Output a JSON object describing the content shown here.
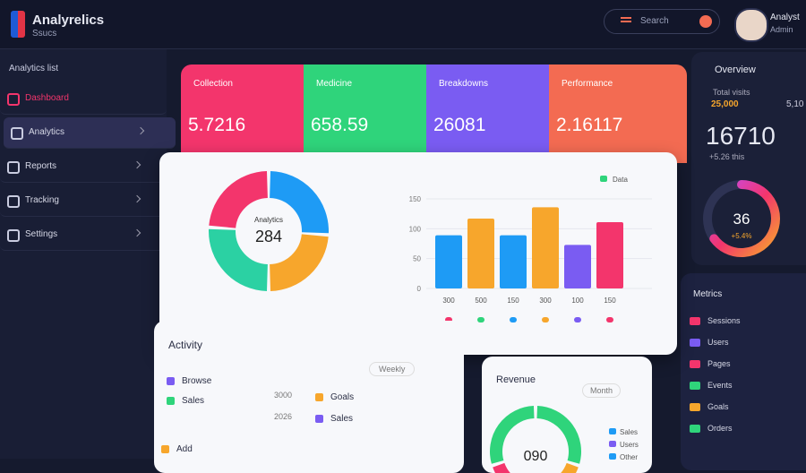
{
  "header": {
    "brand": "Analyrelics",
    "subtitle": "Ssucs",
    "search": "Search",
    "user_name": "Analyst",
    "user_role": "Admin"
  },
  "sidebar": {
    "section": "Analytics list",
    "items": [
      "Dashboard",
      "Analytics",
      "Reports",
      "Tracking",
      "Settings"
    ],
    "active": 1
  },
  "kpis": [
    {
      "label": "Collection",
      "value": "5.7216",
      "color": "#f3356c"
    },
    {
      "label": "Medicine",
      "value": "658.59",
      "color": "#2fd47b"
    },
    {
      "label": "Breakdowns",
      "value": "26081",
      "color": "#7a5cf2"
    },
    {
      "label": "Performance",
      "value": "2.16117",
      "color": "#f36b52"
    }
  ],
  "main_chart": {
    "donut": {
      "label": "Analytics",
      "total": "284",
      "values": [
        26,
        24,
        26,
        24
      ],
      "colors": [
        "#1e9bf5",
        "#f7a62c",
        "#2bd1a3",
        "#f3356c"
      ]
    },
    "bar": {
      "legend": "Data",
      "legend_color": "#2fd47b",
      "categories": [
        "300",
        "500",
        "150",
        "300",
        "100",
        "150"
      ],
      "values": [
        89,
        117,
        89,
        136,
        73,
        111
      ],
      "colors": [
        "#1e9bf5",
        "#f7a62c",
        "#1e9bf5",
        "#f7a62c",
        "#7a5cf2",
        "#f3356c"
      ],
      "legend_dots": [
        "#f3356c",
        "#2fd47b",
        "#1e9bf5",
        "#f7a62c",
        "#7a5cf2",
        "#f3356c"
      ],
      "ylim": [
        0,
        150
      ],
      "yticks": [
        0,
        50,
        100,
        150
      ]
    }
  },
  "overview": {
    "title": "Overview",
    "label": "Total visits",
    "highlights": [
      "25,000",
      "5,10"
    ],
    "value": "16710",
    "note": "+5.26 this",
    "gauge": {
      "value": 65,
      "max": 100,
      "label": "36",
      "delta": "+5.4%"
    }
  },
  "metrics": {
    "title": "Metrics",
    "rows": [
      {
        "label": "Sessions",
        "color": "#f3356c"
      },
      {
        "label": "Users",
        "color": "#7a5cf2"
      },
      {
        "label": "Pages",
        "color": "#f3356c"
      },
      {
        "label": "Events",
        "color": "#2fd47b"
      },
      {
        "label": "Goals",
        "color": "#f7a62c"
      },
      {
        "label": "Orders",
        "color": "#2fd47b"
      }
    ]
  },
  "activity": {
    "title": "Activity",
    "filter": "Weekly",
    "left": [
      {
        "label": "Browse",
        "color": "#7a5cf2"
      },
      {
        "label": "Sales",
        "color": "#2fd47b"
      }
    ],
    "middle": [
      {
        "label": "Goals",
        "value": "3000",
        "color": "#f7a62c"
      },
      {
        "label": "Sales",
        "value": "2026",
        "color": "#7a5cf2"
      }
    ],
    "footer": "Add"
  },
  "revenue": {
    "title": "Revenue",
    "filter": "Month",
    "total": "090",
    "values": [
      30,
      10,
      10,
      20,
      30
    ],
    "colors": [
      "#2fd47b",
      "#f7a62c",
      "#f3356c",
      "#f3356c",
      "#2fd47b"
    ],
    "legend": [
      {
        "label": "Sales",
        "color": "#1e9bf5"
      },
      {
        "label": "Users",
        "color": "#7a5cf2"
      },
      {
        "label": "Other",
        "color": "#1e9bf5"
      }
    ]
  }
}
